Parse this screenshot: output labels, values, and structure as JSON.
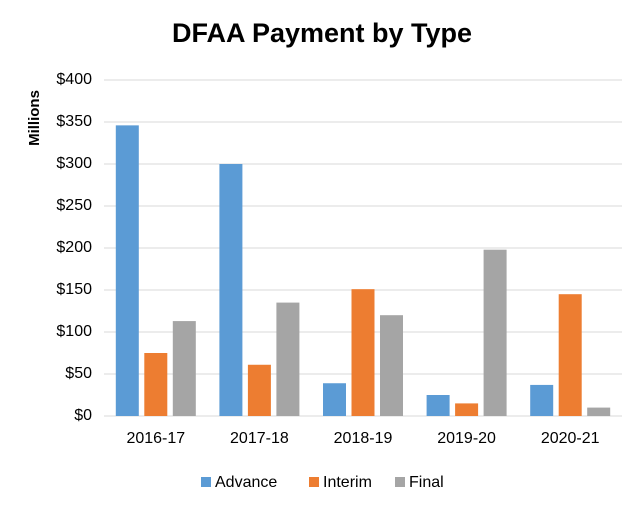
{
  "chart_data": {
    "type": "bar",
    "title": "DFAA Payment by Type",
    "y_label": "Millions",
    "categories": [
      "2016-17",
      "2017-18",
      "2018-19",
      "2019-20",
      "2020-21"
    ],
    "series": [
      {
        "name": "Advance",
        "color": "#5b9bd5",
        "values": [
          346,
          300,
          39,
          25,
          37
        ]
      },
      {
        "name": "Interim",
        "color": "#ed7d31",
        "values": [
          75,
          61,
          151,
          15,
          145
        ]
      },
      {
        "name": "Final",
        "color": "#a5a5a5",
        "values": [
          113,
          135,
          120,
          198,
          10
        ]
      }
    ],
    "ylim": [
      0,
      400
    ],
    "yticks": [
      {
        "value": 0,
        "label": "$0"
      },
      {
        "value": 50,
        "label": "$50"
      },
      {
        "value": 100,
        "label": "$100"
      },
      {
        "value": 150,
        "label": "$150"
      },
      {
        "value": 200,
        "label": "$200"
      },
      {
        "value": 250,
        "label": "$250"
      },
      {
        "value": 300,
        "label": "$300"
      },
      {
        "value": 350,
        "label": "$350"
      },
      {
        "value": 400,
        "label": "$400"
      }
    ],
    "grid": true,
    "legend": "bottom"
  }
}
